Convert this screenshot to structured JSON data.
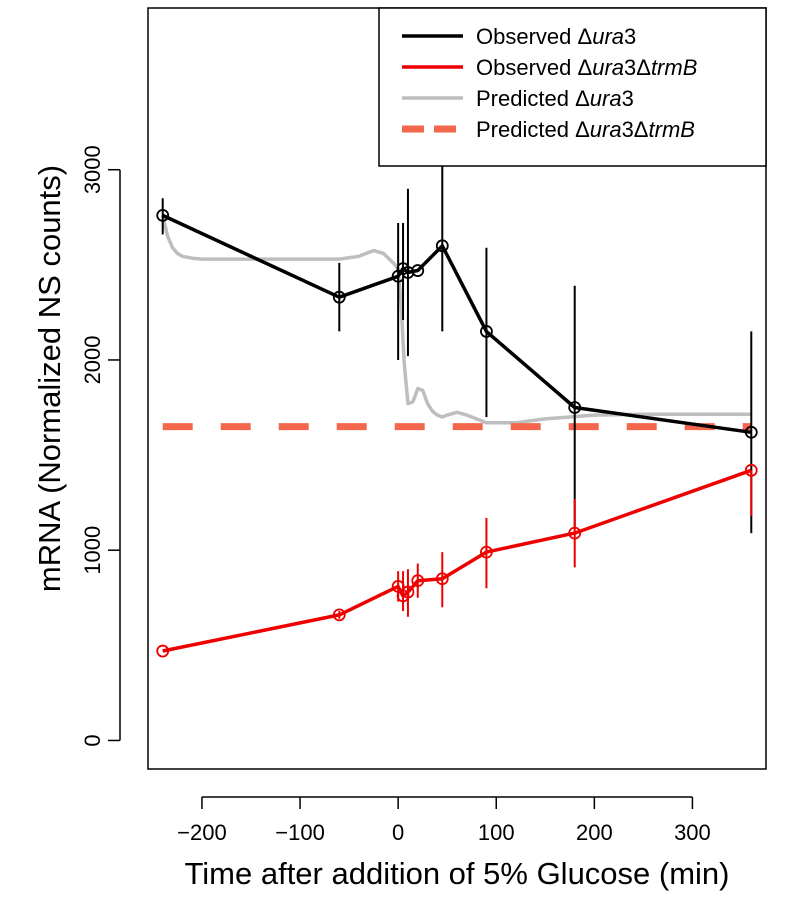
{
  "chart_data": {
    "type": "line",
    "xlabel": "Time after addition of 5% Glucose (min)",
    "ylabel": "mRNA (Normalized NS counts)",
    "xlim": [
      -255,
      375
    ],
    "ylim": [
      -150,
      3850
    ],
    "xticks": [
      -200,
      -100,
      0,
      100,
      200,
      300
    ],
    "yticks": [
      0,
      1000,
      2000,
      3000
    ],
    "grid": false,
    "legend_position": "top-right",
    "legend": [
      {
        "prefix": "Observed ",
        "parts": [
          {
            "text": "Δ",
            "italic": false
          },
          {
            "text": "ura",
            "italic": true
          },
          {
            "text": "3",
            "italic": false
          }
        ],
        "color": "#000000",
        "dash": "solid"
      },
      {
        "prefix": "Observed ",
        "parts": [
          {
            "text": "Δ",
            "italic": false
          },
          {
            "text": "ura",
            "italic": true
          },
          {
            "text": "3Δ",
            "italic": false
          },
          {
            "text": "trmB",
            "italic": true
          }
        ],
        "color": "#ee0000",
        "dash": "solid"
      },
      {
        "prefix": "Predicted ",
        "parts": [
          {
            "text": "Δ",
            "italic": false
          },
          {
            "text": "ura",
            "italic": true
          },
          {
            "text": "3",
            "italic": false
          }
        ],
        "color": "#bebebe",
        "dash": "solid"
      },
      {
        "prefix": "Predicted ",
        "parts": [
          {
            "text": "Δ",
            "italic": false
          },
          {
            "text": "ura",
            "italic": true
          },
          {
            "text": "3Δ",
            "italic": false
          },
          {
            "text": "trmB",
            "italic": true
          }
        ],
        "color": "#f4674d",
        "dash": "dashed"
      }
    ],
    "series": [
      {
        "id": "observed-ura3",
        "color": "#000000",
        "x": [
          -240,
          -60,
          0,
          5,
          10,
          20,
          45,
          90,
          180,
          360
        ],
        "y": [
          2760,
          2330,
          2440,
          2480,
          2460,
          2470,
          2600,
          2150,
          1750,
          1620
        ],
        "err_low": [
          2660,
          2150,
          2000,
          2210,
          2020,
          2470,
          2150,
          1700,
          1120,
          1090
        ],
        "err_high": [
          2850,
          2510,
          2720,
          2720,
          2900,
          2470,
          3040,
          2590,
          2390,
          2150
        ]
      },
      {
        "id": "observed-ura3-trmb",
        "color": "#ee0000",
        "x": [
          -240,
          -60,
          0,
          5,
          10,
          20,
          45,
          90,
          180,
          360
        ],
        "y": [
          470,
          660,
          810,
          760,
          780,
          840,
          850,
          990,
          1090,
          1420
        ],
        "err_low": [
          470,
          640,
          730,
          680,
          650,
          750,
          700,
          800,
          910,
          1180
        ],
        "err_high": [
          470,
          680,
          890,
          890,
          900,
          930,
          990,
          1170,
          1270,
          1420
        ]
      },
      {
        "id": "predicted-ura3",
        "color": "#bebebe",
        "x": [
          -240,
          -235,
          -230,
          -225,
          -220,
          -210,
          -200,
          -150,
          -100,
          -60,
          -40,
          -25,
          -15,
          -5,
          0,
          3,
          6,
          8,
          10,
          15,
          20,
          25,
          30,
          35,
          40,
          45,
          50,
          60,
          70,
          80,
          90,
          100,
          120,
          150,
          200,
          250,
          300,
          360
        ],
        "y": [
          2760,
          2650,
          2590,
          2560,
          2545,
          2535,
          2530,
          2530,
          2530,
          2530,
          2545,
          2575,
          2560,
          2510,
          2480,
          2300,
          2000,
          1880,
          1770,
          1780,
          1850,
          1840,
          1770,
          1730,
          1710,
          1700,
          1710,
          1725,
          1710,
          1690,
          1670,
          1670,
          1670,
          1690,
          1710,
          1715,
          1715,
          1715
        ]
      },
      {
        "id": "predicted-ura3-trmb",
        "color": "#f4674d",
        "x": [
          -240,
          360
        ],
        "y": [
          1650,
          1650
        ]
      }
    ]
  }
}
